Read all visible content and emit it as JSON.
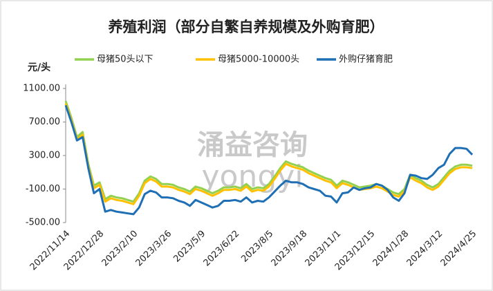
{
  "chart_data": {
    "type": "line",
    "title": "养殖利润（部分自繁自养规模及外购育肥）",
    "y_label": "元/头",
    "watermark": [
      "涌益咨询",
      "yongyi"
    ],
    "categories": [
      "2022/11/14",
      null,
      null,
      null,
      null,
      null,
      "2022/12/28",
      null,
      null,
      null,
      null,
      null,
      "2023/2/10",
      null,
      null,
      null,
      null,
      null,
      "2023/3/26",
      null,
      null,
      null,
      null,
      null,
      "2023/5/9",
      null,
      null,
      null,
      null,
      null,
      "2023/6/22",
      null,
      null,
      null,
      null,
      null,
      "2023/8/5",
      null,
      null,
      null,
      null,
      null,
      "2023/9/18",
      null,
      null,
      null,
      null,
      null,
      "2023/11/1",
      null,
      null,
      null,
      null,
      null,
      "2023/12/15",
      null,
      null,
      null,
      null,
      null,
      "2024/1/28",
      null,
      null,
      null,
      null,
      null,
      "2024/3/12",
      null,
      null,
      null,
      null,
      null,
      "2024/4/25"
    ],
    "series": [
      {
        "name": "母猪50头以下",
        "color": "#92d050",
        "values": [
          950,
          750,
          520,
          580,
          200,
          -60,
          -20,
          -220,
          -180,
          -200,
          -210,
          -230,
          -250,
          -150,
          0,
          50,
          20,
          -40,
          -40,
          -50,
          -80,
          -100,
          -130,
          -70,
          -90,
          -120,
          -150,
          -120,
          -80,
          -80,
          -70,
          -90,
          -40,
          -100,
          -80,
          -90,
          -40,
          50,
          150,
          230,
          200,
          180,
          160,
          120,
          90,
          60,
          30,
          10,
          -60,
          0,
          -20,
          -50,
          -80,
          -70,
          -60,
          -40,
          -60,
          -100,
          -140,
          -160,
          -100,
          70,
          30,
          0,
          -50,
          -80,
          -40,
          40,
          120,
          170,
          190,
          190,
          180
        ]
      },
      {
        "name": "母猪5000-10000头",
        "color": "#ffc000",
        "values": [
          920,
          720,
          490,
          550,
          170,
          -90,
          -50,
          -250,
          -210,
          -230,
          -240,
          -260,
          -280,
          -180,
          -30,
          20,
          -10,
          -70,
          -70,
          -80,
          -110,
          -130,
          -160,
          -100,
          -120,
          -150,
          -180,
          -150,
          -110,
          -110,
          -100,
          -120,
          -70,
          -130,
          -110,
          -120,
          -70,
          20,
          120,
          200,
          170,
          150,
          130,
          90,
          60,
          30,
          0,
          -20,
          -90,
          -30,
          -50,
          -80,
          -110,
          -100,
          -90,
          -70,
          -90,
          -130,
          -170,
          -190,
          -130,
          40,
          0,
          -30,
          -80,
          -110,
          -70,
          10,
          90,
          140,
          160,
          160,
          150
        ]
      },
      {
        "name": "外购仔猪育肥",
        "color": "#1f6fb5",
        "values": [
          900,
          700,
          480,
          520,
          150,
          -150,
          -100,
          -370,
          -350,
          -370,
          -380,
          -390,
          -400,
          -320,
          -160,
          -120,
          -140,
          -200,
          -200,
          -210,
          -240,
          -260,
          -300,
          -230,
          -260,
          -290,
          -320,
          -300,
          -240,
          -240,
          -230,
          -250,
          -200,
          -260,
          -240,
          -250,
          -200,
          -130,
          -60,
          0,
          -20,
          -20,
          -40,
          -80,
          -100,
          -120,
          -180,
          -190,
          -260,
          -150,
          -140,
          -80,
          -110,
          -90,
          -80,
          -40,
          -60,
          -110,
          -200,
          -240,
          -150,
          70,
          60,
          30,
          20,
          70,
          150,
          190,
          320,
          390,
          390,
          380,
          310
        ]
      }
    ],
    "ylim": [
      -500,
      1100
    ],
    "yticks": [
      {
        "value": 1100,
        "label": "1100.00"
      },
      {
        "value": 700,
        "label": "700.00"
      },
      {
        "value": 300,
        "label": "300.00"
      },
      {
        "value": -100,
        "label": "-100.00"
      },
      {
        "value": -500,
        "label": "-500.00"
      }
    ],
    "legend": "top"
  }
}
